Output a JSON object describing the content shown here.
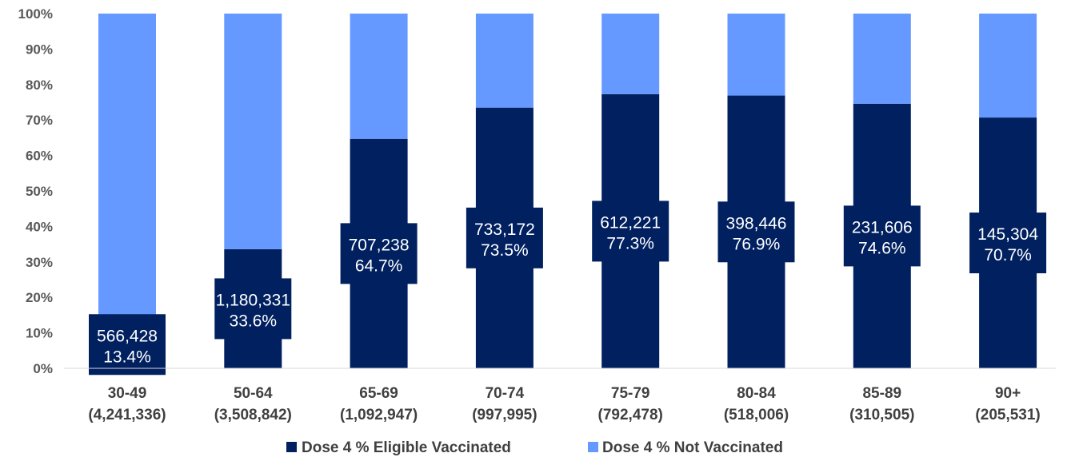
{
  "chart_data": {
    "type": "bar",
    "stacked": true,
    "categories": [
      "30-49",
      "50-64",
      "65-69",
      "70-74",
      "75-79",
      "80-84",
      "85-89",
      "90+"
    ],
    "category_totals": [
      "(4,241,336)",
      "(3,508,842)",
      "(1,092,947)",
      "(997,995)",
      "(792,478)",
      "(518,006)",
      "(310,505)",
      "(205,531)"
    ],
    "series": [
      {
        "name": "Dose 4 % Eligible Vaccinated",
        "color": "#002060",
        "values": [
          13.4,
          33.6,
          64.7,
          73.5,
          77.3,
          76.9,
          74.6,
          70.7
        ],
        "count_labels": [
          "566,428",
          "1,180,331",
          "707,238",
          "733,172",
          "612,221",
          "398,446",
          "231,606",
          "145,304"
        ],
        "percent_labels": [
          "13.4%",
          "33.6%",
          "64.7%",
          "73.5%",
          "77.3%",
          "76.9%",
          "74.6%",
          "70.7%"
        ]
      },
      {
        "name": "Dose 4 % Not Vaccinated",
        "color": "#6699ff",
        "values": [
          86.6,
          66.4,
          35.3,
          26.5,
          22.7,
          23.1,
          25.4,
          29.3
        ]
      }
    ],
    "yticks": [
      "0%",
      "10%",
      "20%",
      "30%",
      "40%",
      "50%",
      "60%",
      "70%",
      "80%",
      "90%",
      "100%"
    ],
    "ylim": [
      0,
      100
    ],
    "grid": false,
    "legend_position": "bottom"
  }
}
